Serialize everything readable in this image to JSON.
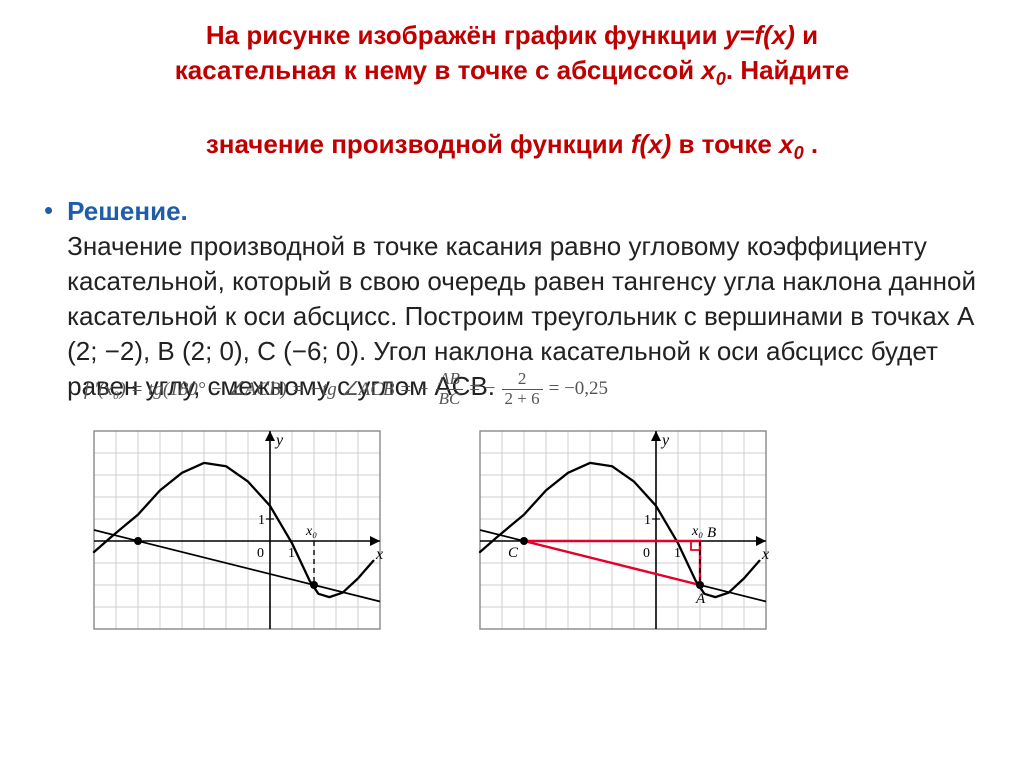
{
  "title": {
    "line1": "На рисунке изображён график функции ",
    "eq1": "y=f(x)",
    "line1b": " и",
    "line2a": "касательная к нему в точке с абсциссой ",
    "x0": "x",
    "x0sub": "0",
    "line2b": ". Найдите",
    "line3a": "значение производной функции ",
    "eq2": "f(x)",
    "line3b": " в точке ",
    "line3c": " .",
    "color": "#c00000"
  },
  "bullet": {
    "color": "#1f5daa"
  },
  "solution": {
    "lead": "Решение.",
    "lead_color": "#1f5daa",
    "text": "Значение производной в точке касания равно угловому коэффициенту касательной, который в свою очередь равен тангенсу угла наклона данной касательной к оси абсцисс. Построим треугольник с вершинами в точках A (2; −2), B (2; 0), C (−6; 0). Угол наклона касательной к оси абсцисс будет равен углу, смежному с углом ACB."
  },
  "formula": {
    "lhs": "f '(x₀) = tg(180° − ∠ACB) = −tg ∠ACB = −",
    "frac1_num": "AB",
    "frac1_den": "BC",
    "mid": " = −",
    "frac2_num": "2",
    "frac2_den": "2 + 6",
    "rhs": " = −0,25"
  },
  "chart_style": {
    "grid_color": "#cfcfcf",
    "axis_color": "#000000",
    "curve_color": "#000000",
    "tangent_color": "#000000",
    "triangle_color": "#e4002b",
    "marker_fill": "#000000",
    "background": "#ffffff",
    "tick_label_fontsize": 14,
    "axis_label_fontsize": 16,
    "point_label_fontsize": 15,
    "cell": 22,
    "width_cells": 13,
    "height_cells": 9,
    "origin_col": 8,
    "origin_row": 5,
    "line_width_axis": 1.6,
    "line_width_grid": 1,
    "line_width_curve": 2.3,
    "line_width_tangent": 1.8,
    "line_width_triangle": 2.4,
    "marker_radius": 4
  },
  "chart_left": {
    "labels": {
      "y": "y",
      "x": "x",
      "one_v": "1",
      "zero": "0",
      "one_h": "1",
      "x0": "x₀"
    }
  },
  "chart_right": {
    "labels": {
      "y": "y",
      "x": "x",
      "one_v": "1",
      "zero": "0",
      "one_h": "1",
      "x0": "x₀",
      "A": "A",
      "B": "B",
      "C": "C"
    },
    "triangle": {
      "A": [
        2,
        -2
      ],
      "B": [
        2,
        0
      ],
      "C": [
        -6,
        0
      ]
    }
  },
  "curve": {
    "path_math": [
      [
        -8,
        -0.5
      ],
      [
        -7.2,
        0.2
      ],
      [
        -6,
        1.2
      ],
      [
        -5,
        2.3
      ],
      [
        -4,
        3.1
      ],
      [
        -3,
        3.55
      ],
      [
        -2,
        3.4
      ],
      [
        -1,
        2.7
      ],
      [
        0,
        1.6
      ],
      [
        1,
        -0.1
      ],
      [
        1.8,
        -1.8
      ],
      [
        2.2,
        -2.4
      ],
      [
        2.7,
        -2.55
      ],
      [
        3.3,
        -2.35
      ],
      [
        4,
        -1.7
      ],
      [
        4.7,
        -0.9
      ]
    ]
  },
  "tangent": {
    "p1": [
      -8,
      0.5
    ],
    "p2": [
      5,
      -2.75
    ]
  }
}
